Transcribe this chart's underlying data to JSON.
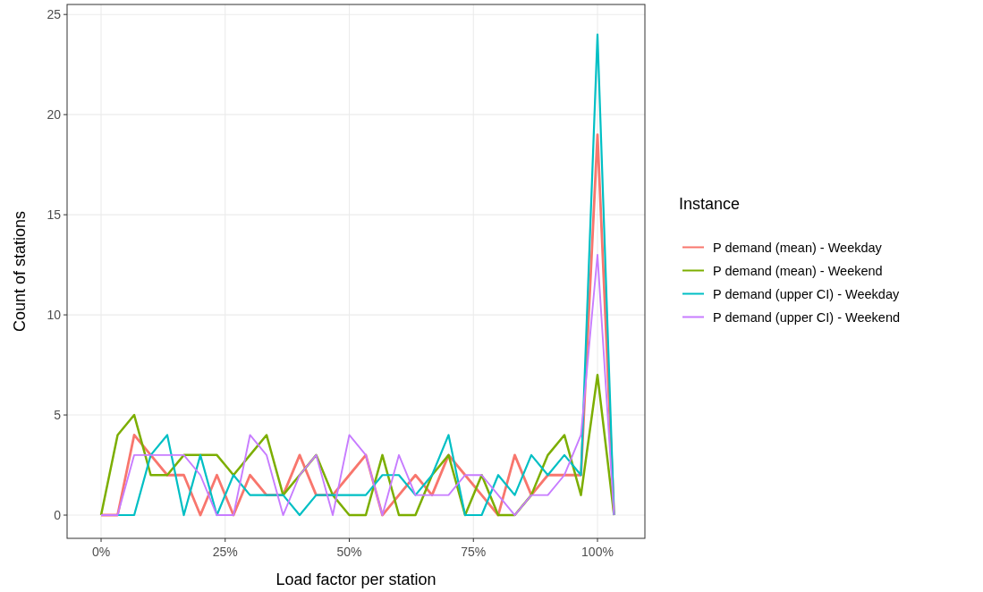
{
  "chart_data": {
    "type": "line",
    "xlabel": "Load factor per station",
    "ylabel": "Count of stations",
    "legend_title": "Instance",
    "legend": "right",
    "grid": true,
    "line_style": "solid",
    "x": [
      0,
      0.0333,
      0.0667,
      0.1,
      0.1333,
      0.1667,
      0.2,
      0.2333,
      0.2667,
      0.3,
      0.3333,
      0.3667,
      0.4,
      0.4333,
      0.4667,
      0.5,
      0.5333,
      0.5667,
      0.6,
      0.6333,
      0.6667,
      0.7,
      0.7333,
      0.7667,
      0.8,
      0.8333,
      0.8667,
      0.9,
      0.9333,
      0.9667,
      1,
      1.0333
    ],
    "xlim": [
      -0.0685,
      1.0955
    ],
    "xticks": [
      {
        "value": 0,
        "label": "0%"
      },
      {
        "value": 0.25,
        "label": "25%"
      },
      {
        "value": 0.5,
        "label": "50%"
      },
      {
        "value": 0.75,
        "label": "75%"
      },
      {
        "value": 1,
        "label": "100%"
      }
    ],
    "ylim": [
      -1.16,
      25.5
    ],
    "yticks": [
      0,
      5,
      10,
      15,
      20,
      25
    ],
    "series": [
      {
        "name": "P demand (mean) - Weekday",
        "color": "#f8766d",
        "values": [
          0,
          0,
          4,
          3,
          2,
          2,
          0,
          2,
          0,
          2,
          1,
          1,
          3,
          1,
          1,
          2,
          3,
          0,
          1,
          2,
          1,
          3,
          2,
          1,
          0,
          3,
          1,
          2,
          2,
          2,
          19,
          0
        ]
      },
      {
        "name": "P demand (mean) - Weekend",
        "color": "#7cae00",
        "values": [
          0,
          4,
          5,
          2,
          2,
          3,
          3,
          3,
          2,
          3,
          4,
          1,
          2,
          3,
          1,
          0,
          0,
          3,
          0,
          0,
          2,
          3,
          0,
          2,
          0,
          0,
          1,
          3,
          4,
          1,
          7,
          0
        ]
      },
      {
        "name": "P demand (upper CI) - Weekday",
        "color": "#00bfc4",
        "values": [
          0,
          0,
          0,
          3,
          4,
          0,
          3,
          0,
          2,
          1,
          1,
          1,
          0,
          1,
          1,
          1,
          1,
          2,
          2,
          1,
          2,
          4,
          0,
          0,
          2,
          1,
          3,
          2,
          3,
          2,
          24,
          0
        ]
      },
      {
        "name": "P demand (upper CI) - Weekend",
        "color": "#c77cff",
        "values": [
          0,
          0,
          3,
          3,
          3,
          3,
          2,
          0,
          0,
          4,
          3,
          0,
          2,
          3,
          0,
          4,
          3,
          0,
          3,
          1,
          1,
          1,
          2,
          2,
          1,
          0,
          1,
          1,
          2,
          4,
          13,
          0
        ]
      }
    ]
  }
}
